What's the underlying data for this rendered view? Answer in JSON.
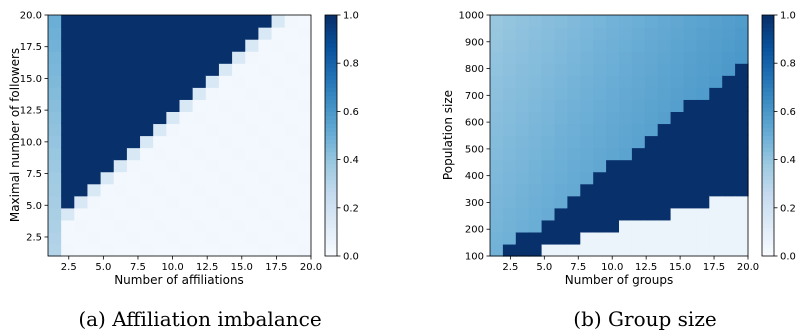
{
  "chart_data": [
    {
      "type": "heatmap",
      "caption": "(a) Affiliation imbalance",
      "xlabel": "Number of affiliations",
      "ylabel": "Maximal number of followers",
      "x_ticks": [
        "2.5",
        "5.0",
        "7.5",
        "10.0",
        "12.5",
        "15.0",
        "17.5",
        "20.0"
      ],
      "y_ticks": [
        "2.5",
        "5.0",
        "7.5",
        "10.0",
        "12.5",
        "15.0",
        "17.5",
        "20.0"
      ],
      "xlim": [
        1,
        20
      ],
      "ylim": [
        1,
        20
      ],
      "colorbar": {
        "colormap": "Blues",
        "ticks": [
          "0.0",
          "0.2",
          "0.4",
          "0.6",
          "0.8",
          "1.0"
        ],
        "range": [
          0,
          1
        ]
      },
      "grid": {
        "rows": 20,
        "cols": 20,
        "description": "Cells above the diagonal (followers greater than about affiliations+1) near 1.0; below the diagonal near 0.02; first affiliation column intermediate",
        "high_value": 1.0,
        "low_value": 0.02
      }
    },
    {
      "type": "heatmap",
      "caption": "(b) Group size",
      "xlabel": "Number of groups",
      "ylabel": "Population size",
      "x_ticks": [
        "2.5",
        "5.0",
        "7.5",
        "10.0",
        "12.5",
        "15.0",
        "17.5",
        "20.0"
      ],
      "y_ticks": [
        "100",
        "200",
        "300",
        "400",
        "500",
        "600",
        "700",
        "800",
        "900",
        "1000"
      ],
      "xlim": [
        1,
        20
      ],
      "ylim": [
        100,
        1000
      ],
      "colorbar": {
        "colormap": "Blues",
        "ticks": [
          "0.0",
          "0.2",
          "0.4",
          "0.6",
          "0.8",
          "1.0"
        ],
        "range": [
          0,
          1
        ]
      },
      "grid": {
        "rows": 20,
        "cols": 20,
        "description": "Upper-left region moderate values around 0.45-0.6; a dark band (~1.0) below the diagonal where groups are large relative to population; bottom-right low values near 0.05",
        "high_value": 1.0,
        "mid_value": 0.5,
        "low_value": 0.05
      }
    }
  ]
}
